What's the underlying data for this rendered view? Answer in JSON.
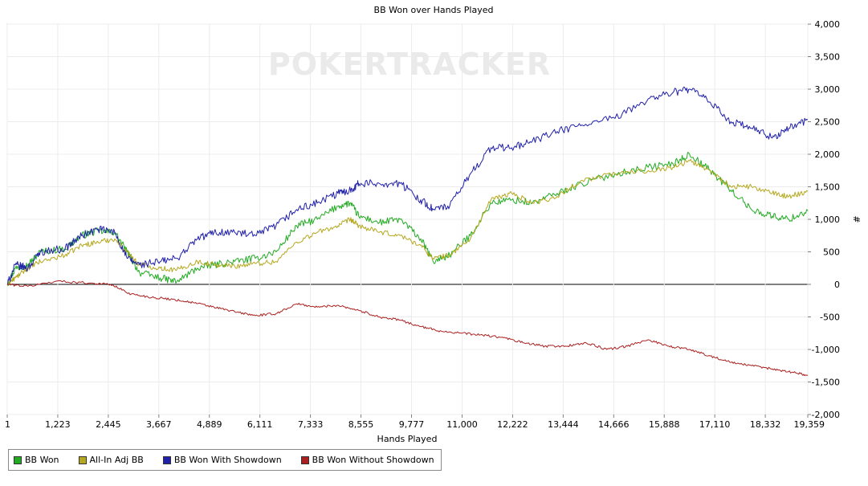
{
  "chart_data": {
    "type": "line",
    "title": "BB Won over Hands Played",
    "xlabel": "Hands Played",
    "ylabel": "#",
    "xlim": [
      1,
      19359
    ],
    "ylim": [
      -2000,
      4000
    ],
    "x_ticks": [
      "1",
      "1,223",
      "2,445",
      "3,667",
      "4,889",
      "6,111",
      "7,333",
      "8,555",
      "9,777",
      "11,000",
      "12,222",
      "13,444",
      "14,666",
      "15,888",
      "17,110",
      "18,332",
      "19,359"
    ],
    "x_tick_values": [
      1,
      1223,
      2445,
      3667,
      4889,
      6111,
      7333,
      8555,
      9777,
      11000,
      12222,
      13444,
      14666,
      15888,
      17110,
      18332,
      19359
    ],
    "y_ticks": [
      "4,000",
      "3,500",
      "3,000",
      "2,500",
      "2,000",
      "1,500",
      "1,000",
      "500",
      "0",
      "-500",
      "-1,000",
      "-1,500",
      "-2,000"
    ],
    "y_tick_values": [
      4000,
      3500,
      3000,
      2500,
      2000,
      1500,
      1000,
      500,
      0,
      -500,
      -1000,
      -1500,
      -2000
    ],
    "grid": true,
    "legend_position": "bottom-left",
    "series": [
      {
        "name": "BB Won",
        "color": "#22aa22",
        "x": [
          1,
          200,
          500,
          800,
          1400,
          1800,
          2200,
          2600,
          2900,
          3200,
          3700,
          4100,
          4600,
          5000,
          5500,
          6000,
          6500,
          7000,
          7500,
          8000,
          8300,
          8500,
          9000,
          9500,
          10000,
          10300,
          10700,
          11200,
          11700,
          12200,
          12700,
          13300,
          13900,
          14700,
          15500,
          16100,
          16500,
          17000,
          17500,
          18000,
          18500,
          18900,
          19359
        ],
        "y": [
          0,
          250,
          300,
          500,
          550,
          750,
          820,
          800,
          500,
          180,
          100,
          40,
          250,
          300,
          350,
          400,
          500,
          900,
          1000,
          1200,
          1250,
          1050,
          950,
          1000,
          700,
          350,
          450,
          750,
          1250,
          1300,
          1250,
          1400,
          1550,
          1700,
          1800,
          1850,
          2000,
          1750,
          1450,
          1150,
          1050,
          1000,
          1130
        ]
      },
      {
        "name": "All-In Adj BB",
        "color": "#b5a81e",
        "x": [
          1,
          200,
          500,
          800,
          1400,
          1800,
          2200,
          2600,
          2900,
          3200,
          3700,
          4100,
          4600,
          5000,
          5500,
          6000,
          6500,
          7000,
          7500,
          8000,
          8300,
          8500,
          9000,
          9500,
          10000,
          10300,
          10700,
          11200,
          11700,
          12200,
          12700,
          13300,
          13900,
          14700,
          15500,
          16100,
          16500,
          17000,
          17500,
          18000,
          18500,
          18900,
          19359
        ],
        "y": [
          0,
          100,
          250,
          350,
          450,
          600,
          650,
          700,
          500,
          300,
          250,
          220,
          350,
          300,
          280,
          320,
          350,
          650,
          800,
          900,
          1000,
          900,
          800,
          750,
          600,
          400,
          450,
          700,
          1300,
          1400,
          1250,
          1350,
          1600,
          1700,
          1750,
          1800,
          1900,
          1750,
          1500,
          1500,
          1400,
          1350,
          1430
        ]
      },
      {
        "name": "BB Won With Showdown",
        "color": "#2020aa",
        "x": [
          1,
          200,
          500,
          800,
          1400,
          1800,
          2200,
          2600,
          2900,
          3200,
          3700,
          4100,
          4600,
          5000,
          5500,
          6000,
          6500,
          7000,
          7500,
          8000,
          8300,
          8500,
          9000,
          9500,
          10000,
          10300,
          10700,
          11200,
          11700,
          12200,
          12700,
          13300,
          13900,
          14700,
          15500,
          16100,
          16500,
          17000,
          17500,
          18000,
          18500,
          18900,
          19359
        ],
        "y": [
          0,
          300,
          250,
          500,
          550,
          750,
          850,
          800,
          400,
          300,
          350,
          400,
          700,
          800,
          800,
          750,
          900,
          1150,
          1250,
          1400,
          1450,
          1550,
          1550,
          1550,
          1300,
          1150,
          1200,
          1700,
          2100,
          2100,
          2200,
          2350,
          2450,
          2550,
          2850,
          2950,
          3000,
          2800,
          2500,
          2400,
          2250,
          2400,
          2530
        ]
      },
      {
        "name": "BB Won Without Showdown",
        "color": "#aa2020",
        "x": [
          1,
          500,
          1200,
          2000,
          2500,
          3000,
          3500,
          4000,
          4500,
          5000,
          5500,
          6000,
          6500,
          7000,
          7500,
          8000,
          8500,
          9000,
          9500,
          10000,
          10500,
          11000,
          11500,
          12000,
          12500,
          13000,
          13500,
          14000,
          14500,
          15000,
          15500,
          16000,
          16500,
          17000,
          17500,
          18000,
          18500,
          19000,
          19359
        ],
        "y": [
          0,
          -30,
          50,
          20,
          0,
          -150,
          -200,
          -230,
          -280,
          -350,
          -420,
          -480,
          -450,
          -300,
          -350,
          -320,
          -400,
          -500,
          -550,
          -650,
          -720,
          -750,
          -780,
          -820,
          -900,
          -950,
          -950,
          -900,
          -1000,
          -950,
          -850,
          -950,
          -1000,
          -1100,
          -1200,
          -1250,
          -1300,
          -1350,
          -1400
        ]
      }
    ]
  },
  "watermark": "POKERTRACKER"
}
